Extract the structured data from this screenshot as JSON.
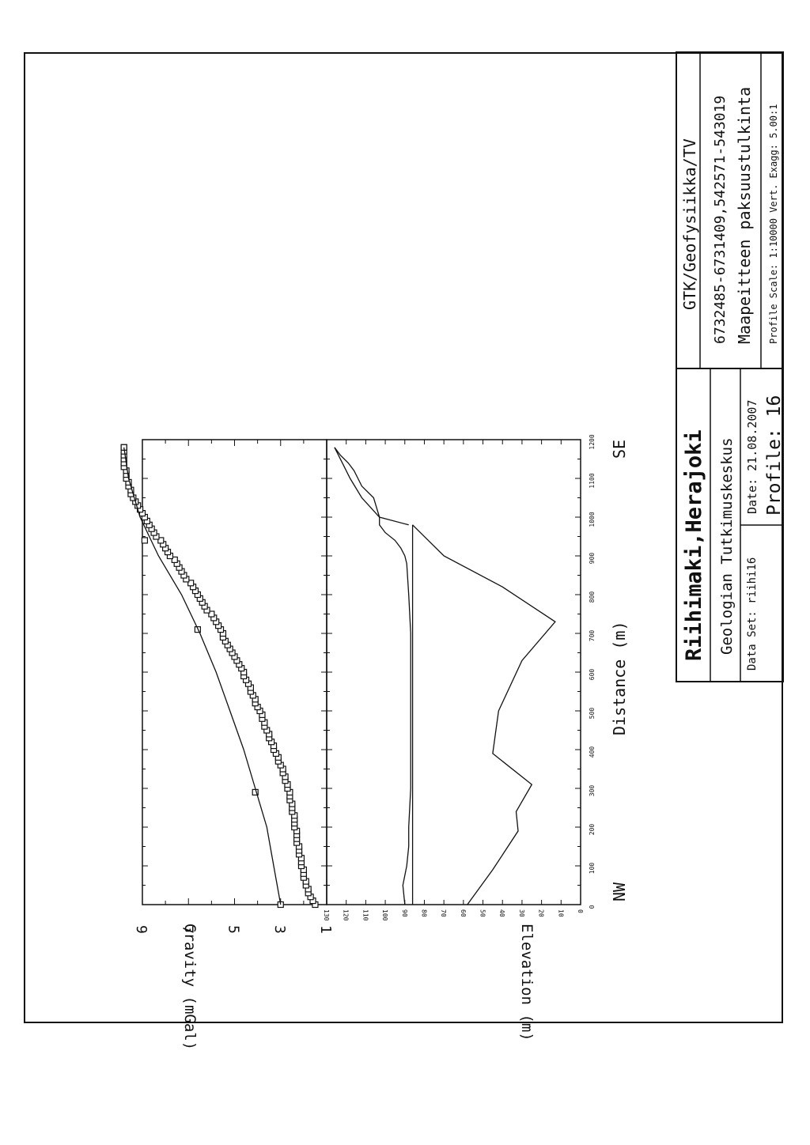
{
  "title_block": {
    "organization": "GTK/Geofysiikka/TV",
    "coordinates": "6732485-6731409,542571-543019",
    "description": "Maapeitteen paksuustulkinta",
    "scale": "Profile Scale: 1:10000 Vert. Exagg: 5.00:1",
    "location": "Riihimaki,Herajoki",
    "institute": "Geologian Tutkimuskeskus",
    "dataset": "Data Set: riihi16",
    "date": "Date: 21.08.2007",
    "profile": "Profile: 16"
  },
  "chart_data": [
    {
      "type": "line",
      "ylabel": "Gravity (mGal)",
      "xlabel": "Distance (m)",
      "xlim": [
        0,
        1200
      ],
      "ylim": [
        1,
        9
      ],
      "ytick_labels": [
        "1",
        "3",
        "5",
        "7",
        "9"
      ],
      "series": [
        {
          "marker": "square",
          "x": [
            0,
            10,
            20,
            30,
            40,
            50,
            60,
            70,
            80,
            90,
            100,
            110,
            120,
            130,
            140,
            150,
            160,
            170,
            180,
            190,
            200,
            210,
            220,
            230,
            240,
            250,
            260,
            270,
            280,
            290,
            300,
            310,
            320,
            330,
            340,
            350,
            360,
            370,
            380,
            390,
            400,
            410,
            420,
            430,
            440,
            450,
            460,
            470,
            480,
            490,
            500,
            510,
            520,
            530,
            540,
            550,
            560,
            570,
            580,
            590,
            600,
            610,
            620,
            630,
            640,
            650,
            660,
            670,
            680,
            690,
            700,
            710,
            720,
            730,
            740,
            750,
            760,
            770,
            780,
            790,
            800,
            810,
            820,
            830,
            840,
            850,
            860,
            870,
            880,
            890,
            900,
            910,
            920,
            930,
            940,
            950,
            960,
            970,
            980,
            990,
            1000,
            1010,
            1020,
            1030,
            1040,
            1050,
            1060,
            1070,
            1080,
            1090,
            1100,
            1110,
            1120,
            1130,
            1140,
            1150,
            1160,
            1170,
            1180
          ],
          "y": [
            1.5,
            1.6,
            1.7,
            1.8,
            1.8,
            1.9,
            1.9,
            2.0,
            2.0,
            2.0,
            2.1,
            2.1,
            2.1,
            2.2,
            2.2,
            2.2,
            2.3,
            2.3,
            2.3,
            2.3,
            2.4,
            2.4,
            2.4,
            2.4,
            2.5,
            2.5,
            2.5,
            2.6,
            2.6,
            2.6,
            2.7,
            2.7,
            2.8,
            2.8,
            2.9,
            2.9,
            3.0,
            3.1,
            3.1,
            3.2,
            3.3,
            3.3,
            3.4,
            3.5,
            3.5,
            3.6,
            3.7,
            3.7,
            3.8,
            3.8,
            3.9,
            4.0,
            4.1,
            4.1,
            4.2,
            4.3,
            4.3,
            4.4,
            4.5,
            4.6,
            4.6,
            4.7,
            4.8,
            4.9,
            5.0,
            5.1,
            5.2,
            5.3,
            5.4,
            5.5,
            5.5,
            5.6,
            5.7,
            5.8,
            5.9,
            6.0,
            6.2,
            6.3,
            6.4,
            6.5,
            6.6,
            6.7,
            6.8,
            6.9,
            7.1,
            7.2,
            7.3,
            7.4,
            7.5,
            7.6,
            7.8,
            7.9,
            8.0,
            8.1,
            8.2,
            8.4,
            8.5,
            8.6,
            8.7,
            8.8,
            8.9,
            9.0,
            9.1,
            9.2,
            9.3,
            9.4,
            9.5,
            9.5,
            9.6,
            9.6,
            9.7,
            9.7,
            9.7,
            9.8,
            9.8,
            9.8,
            9.8,
            9.8,
            9.8
          ]
        },
        {
          "marker": "square",
          "x": [
            0,
            290,
            710,
            940,
            1180
          ],
          "y": [
            3.0,
            4.1,
            6.6,
            8.9,
            9.8
          ]
        },
        {
          "marker": "none",
          "x": [
            0,
            100,
            200,
            300,
            400,
            500,
            600,
            700,
            800,
            900,
            1000,
            1100,
            1180
          ],
          "y": [
            3.0,
            3.3,
            3.6,
            4.1,
            4.6,
            5.2,
            5.8,
            6.5,
            7.3,
            8.3,
            9.1,
            9.6,
            9.8
          ]
        }
      ]
    },
    {
      "type": "line",
      "ylabel": "Elevation (m)",
      "xlabel": "Distance (m)",
      "xlim": [
        0,
        1200
      ],
      "ylim": [
        0,
        130
      ],
      "xtick_labels": [
        "0",
        "100",
        "200",
        "300",
        "400",
        "500",
        "600",
        "700",
        "800",
        "900",
        "1000",
        "1100",
        "1200"
      ],
      "ytick_labels": [
        "0",
        "10",
        "20",
        "30",
        "40",
        "50",
        "60",
        "70",
        "80",
        "90",
        "100",
        "110",
        "120",
        "130"
      ],
      "direction_labels": [
        "NW",
        "SE"
      ],
      "series": [
        {
          "marker": "none",
          "x": [
            0,
            50,
            100,
            150,
            200,
            300,
            400,
            500,
            600,
            700,
            800,
            880,
            900,
            920,
            940,
            960,
            980,
            1000,
            1050,
            1080,
            1100,
            1120,
            1140,
            1160,
            1180
          ],
          "y": [
            90,
            91,
            89,
            88,
            88,
            87,
            87,
            87,
            87,
            87,
            88,
            89,
            90,
            92,
            95,
            100,
            103,
            103,
            106,
            112,
            114,
            116,
            119,
            123,
            126
          ]
        },
        {
          "marker": "none",
          "x": [
            980,
            1000,
            1050,
            1100,
            1140,
            1180
          ],
          "y": [
            88,
            103,
            112,
            118,
            122,
            126
          ]
        },
        {
          "marker": "none",
          "x": [
            0,
            980
          ],
          "y": [
            86,
            86
          ]
        },
        {
          "marker": "none",
          "x": [
            0,
            90,
            190,
            240,
            310,
            390,
            500,
            630,
            730,
            820,
            900,
            980
          ],
          "y": [
            58,
            45,
            32,
            33,
            25,
            45,
            42,
            30,
            13,
            40,
            70,
            86
          ]
        }
      ]
    }
  ]
}
